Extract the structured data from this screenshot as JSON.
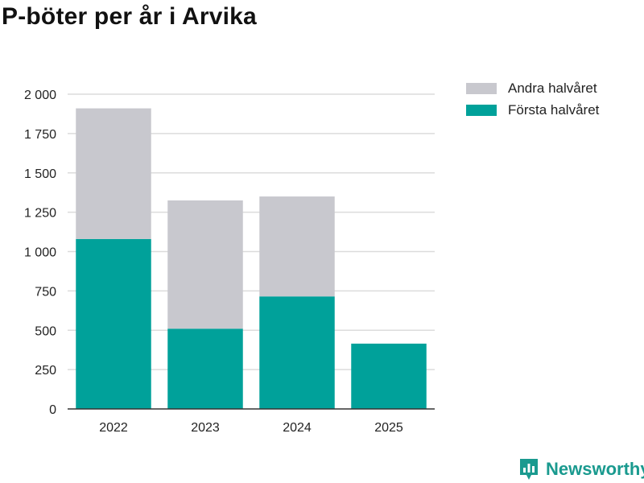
{
  "title": "P-böter per år i Arvika",
  "brand": {
    "name": "Newsworthy",
    "icon": "newsworthy-chart-icon"
  },
  "chart_data": {
    "type": "bar",
    "stacked": true,
    "categories": [
      "2022",
      "2023",
      "2024",
      "2025"
    ],
    "series": [
      {
        "name": "Första halvåret",
        "color": "#00a19a",
        "values": [
          1080,
          510,
          715,
          415
        ]
      },
      {
        "name": "Andra halvåret",
        "color": "#c8c8ce",
        "values": [
          830,
          815,
          635,
          null
        ]
      }
    ],
    "ylim": [
      0,
      2000
    ],
    "yticks": [
      0,
      250,
      500,
      750,
      1000,
      1250,
      1500,
      1750,
      2000
    ],
    "ytick_labels": [
      "0",
      "250",
      "500",
      "750",
      "1 000",
      "1 250",
      "1 500",
      "1 750",
      "2 000"
    ],
    "grid": true,
    "legend_position": "top-right"
  },
  "legend": [
    {
      "label": "Andra halvåret",
      "color": "#c8c8ce"
    },
    {
      "label": "Första halvåret",
      "color": "#00a19a"
    }
  ]
}
